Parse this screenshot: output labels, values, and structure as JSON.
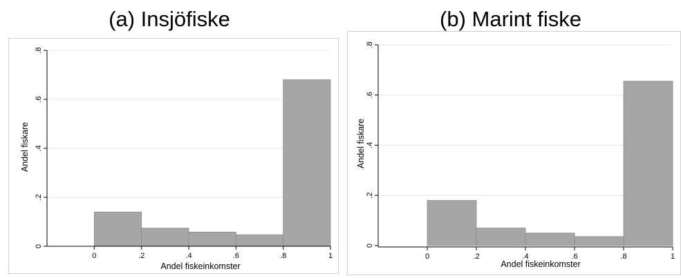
{
  "chart_data": [
    {
      "type": "bar",
      "title": "(a) Insjöfiske",
      "xlabel": "Andel fiskeinkomster",
      "ylabel": "Andel fiskare",
      "xlim": [
        -0.2,
        1
      ],
      "ylim": [
        0,
        0.8
      ],
      "x_ticks": [
        "0",
        ".2",
        ".4",
        ".6",
        ".8",
        "1"
      ],
      "x_tick_values": [
        0,
        0.2,
        0.4,
        0.6,
        0.8,
        1
      ],
      "y_ticks": [
        "0",
        ".2",
        ".4",
        ".6",
        ".8"
      ],
      "y_tick_values": [
        0,
        0.2,
        0.4,
        0.6,
        0.8
      ],
      "bins": [
        {
          "x0": 0.0,
          "x1": 0.2,
          "value": 0.14
        },
        {
          "x0": 0.2,
          "x1": 0.4,
          "value": 0.074
        },
        {
          "x0": 0.4,
          "x1": 0.6,
          "value": 0.058
        },
        {
          "x0": 0.6,
          "x1": 0.8,
          "value": 0.047
        },
        {
          "x0": 0.8,
          "x1": 1.0,
          "value": 0.68
        }
      ],
      "grid": true,
      "bar_color": "#a6a6a6"
    },
    {
      "type": "bar",
      "title": "(b) Marint fiske",
      "xlabel": "Andel fiskeinkomster",
      "ylabel": "Andel fiskare",
      "xlim": [
        -0.2,
        1
      ],
      "ylim": [
        0,
        0.8
      ],
      "x_ticks": [
        "0",
        ".2",
        ".4",
        ".6",
        ".8",
        "1"
      ],
      "x_tick_values": [
        0,
        0.2,
        0.4,
        0.6,
        0.8,
        1
      ],
      "y_ticks": [
        "0",
        ".2",
        ".4",
        ".6",
        ".8"
      ],
      "y_tick_values": [
        0,
        0.2,
        0.4,
        0.6,
        0.8
      ],
      "bins": [
        {
          "x0": 0.0,
          "x1": 0.2,
          "value": 0.18
        },
        {
          "x0": 0.2,
          "x1": 0.4,
          "value": 0.07
        },
        {
          "x0": 0.4,
          "x1": 0.6,
          "value": 0.05
        },
        {
          "x0": 0.6,
          "x1": 0.8,
          "value": 0.036
        },
        {
          "x0": 0.8,
          "x1": 1.0,
          "value": 0.655
        }
      ],
      "grid": true,
      "bar_color": "#a6a6a6"
    }
  ]
}
